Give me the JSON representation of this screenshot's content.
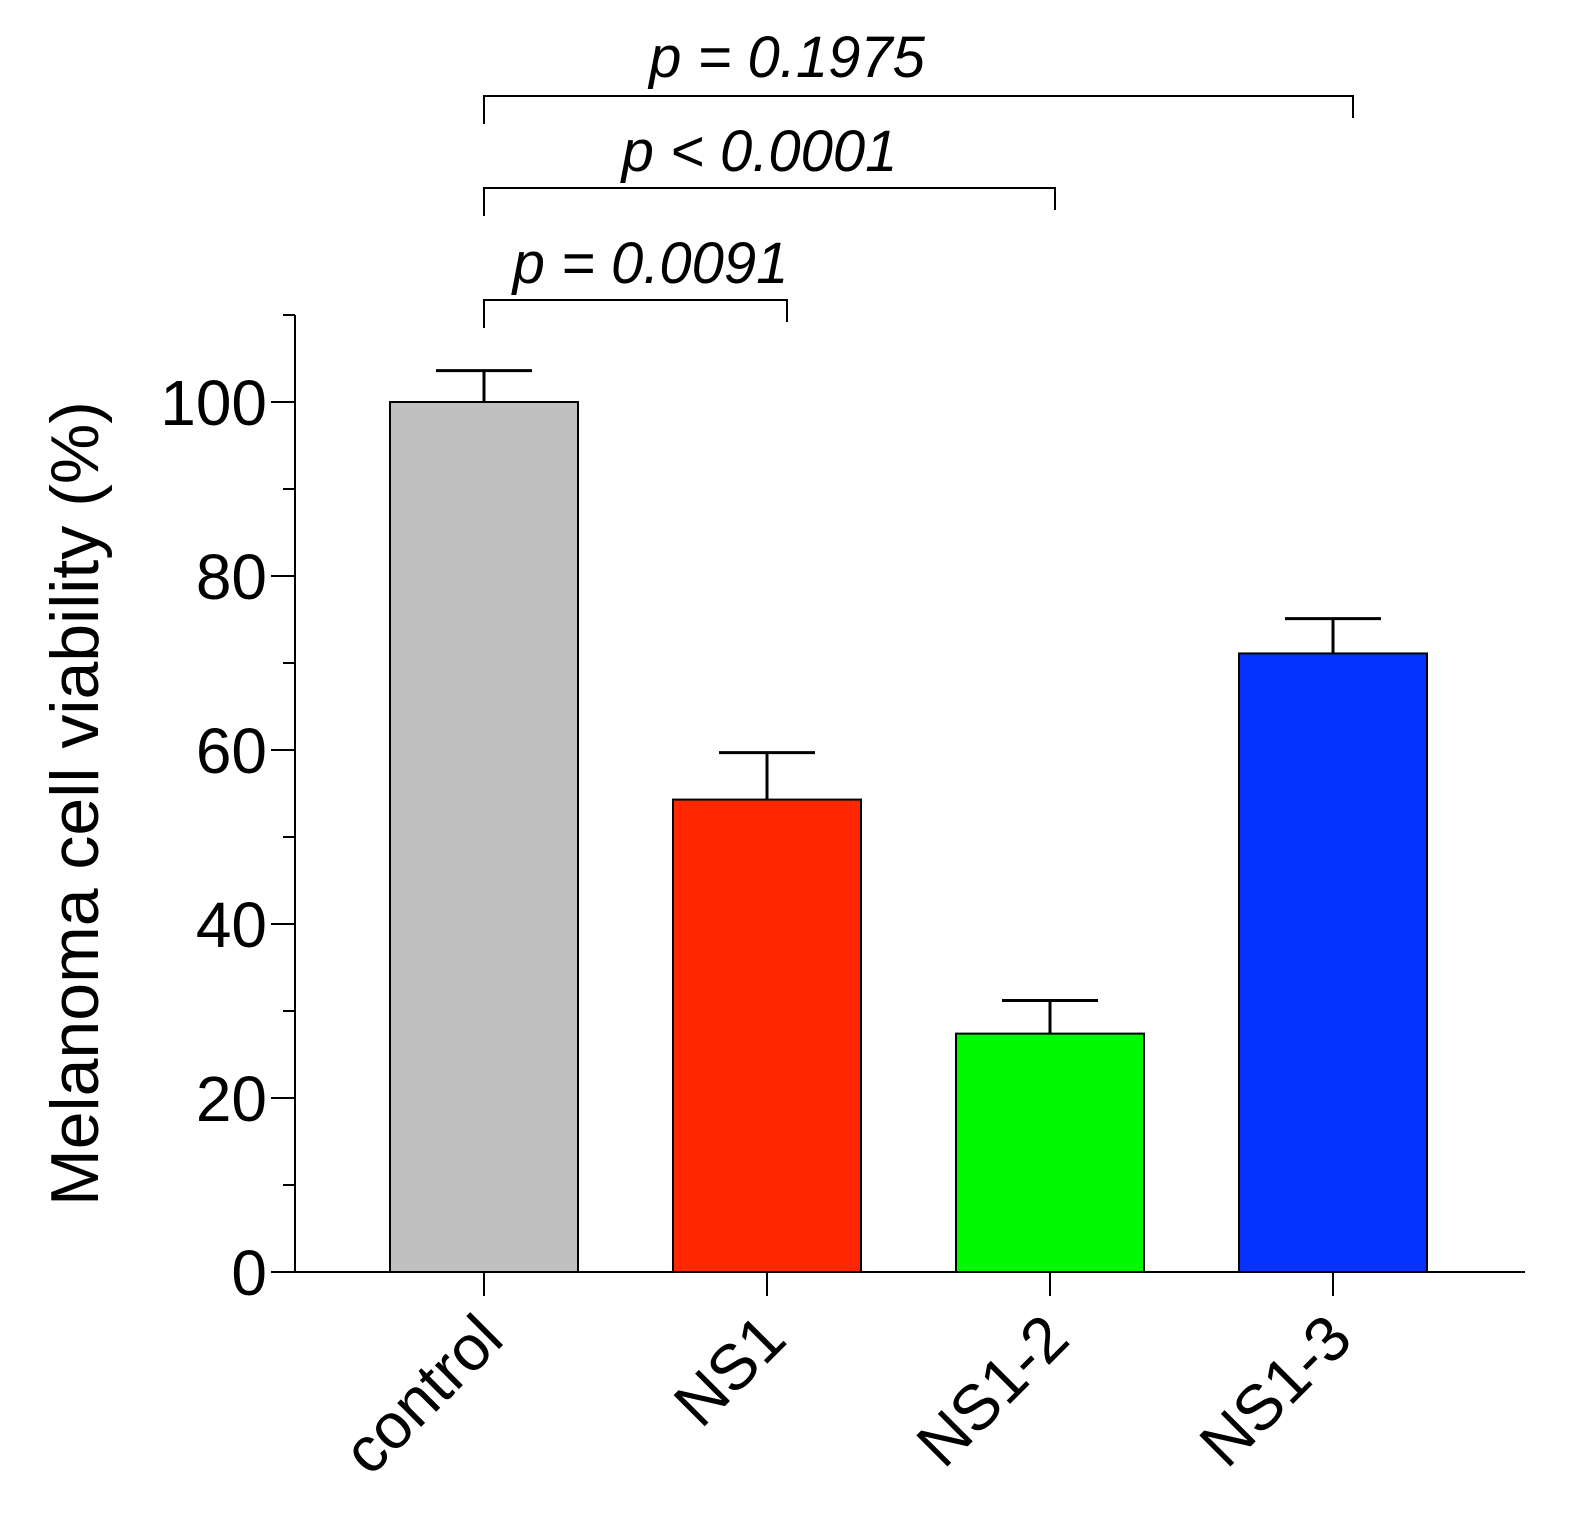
{
  "chart_data": {
    "type": "bar",
    "title": "",
    "xlabel": "",
    "ylabel": "Melanoma cell viability (%)",
    "ylim": [
      0,
      110
    ],
    "yticks": [
      0,
      20,
      40,
      60,
      80,
      100
    ],
    "ytick_labels": [
      "0",
      "20",
      "40",
      "60",
      "80",
      "100"
    ],
    "categories": [
      "control",
      "NS1",
      "NS1-2",
      "NS1-3"
    ],
    "values": [
      100,
      54.3,
      27.4,
      71.1
    ],
    "errors": [
      3.6,
      5.4,
      3.8,
      4.0
    ],
    "colors": [
      "#c0c0c0",
      "#ff2600",
      "#00f900",
      "#0433ff"
    ],
    "grid": false,
    "legend": "none",
    "comparisons": [
      {
        "from": "control",
        "to": "NS1",
        "label": "p = 0.0091"
      },
      {
        "from": "control",
        "to": "NS1-2",
        "label": "p < 0.0001"
      },
      {
        "from": "control",
        "to": "NS1-3",
        "label": "p = 0.1975"
      }
    ]
  }
}
